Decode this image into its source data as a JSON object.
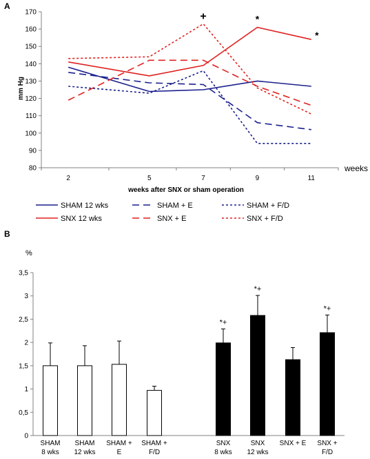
{
  "panels": {
    "a_label": "A",
    "b_label": "B"
  },
  "colors": {
    "sham": "#1a1f8c",
    "snx": "#e02020",
    "axis": "#808080",
    "bar_black": "#000000",
    "bar_white": "#ffffff"
  },
  "chart_data": [
    {
      "type": "line",
      "panel": "A",
      "ylabel": "mm Hg",
      "xlabel": "weeks after SNX or sham operation",
      "x_unit_label": "weeks",
      "x": [
        2,
        5,
        7,
        9,
        11
      ],
      "ylim": [
        80,
        170
      ],
      "yticks": [
        80,
        90,
        100,
        110,
        120,
        130,
        140,
        150,
        160,
        170
      ],
      "grid": false,
      "legend_position": "bottom",
      "series": [
        {
          "name": "SHAM 12 wks",
          "group": "sham",
          "style": "solid",
          "values": [
            138,
            124,
            125,
            130,
            127
          ]
        },
        {
          "name": "SHAM + E",
          "group": "sham",
          "style": "dashed",
          "values": [
            135,
            129,
            128,
            106,
            102
          ]
        },
        {
          "name": "SHAM + F/D",
          "group": "sham",
          "style": "dotted",
          "values": [
            127,
            123,
            136,
            94,
            94
          ]
        },
        {
          "name": "SNX 12 wks",
          "group": "snx",
          "style": "solid",
          "values": [
            141,
            133,
            139,
            161,
            154
          ]
        },
        {
          "name": "SNX + E",
          "group": "snx",
          "style": "dashed",
          "values": [
            119,
            142,
            142,
            127,
            116
          ]
        },
        {
          "name": "SNX + F/D",
          "group": "snx",
          "style": "dotted",
          "values": [
            143,
            144,
            163,
            126,
            111
          ]
        }
      ],
      "annotations": [
        {
          "text": "+",
          "x": 7,
          "y": 163
        },
        {
          "text": "*",
          "x": 9,
          "y": 161
        },
        {
          "text": "*",
          "x": 11,
          "y": 154
        }
      ]
    },
    {
      "type": "bar",
      "panel": "B",
      "ylabel": "%",
      "ylim": [
        0,
        3.5
      ],
      "yticks": [
        "0",
        "0,5",
        "1",
        "1,5",
        "2",
        "2,5",
        "3",
        "3,5"
      ],
      "grid": false,
      "categories": [
        [
          "SHAM",
          "8 wks"
        ],
        [
          "SHAM",
          "12 wks"
        ],
        [
          "SHAM +",
          "E"
        ],
        [
          "SHAM +",
          "F/D"
        ],
        [
          "SNX",
          "8 wks"
        ],
        [
          "SNX",
          "12 wks"
        ],
        [
          "SNX + E"
        ],
        [
          "SNX +",
          "F/D"
        ]
      ],
      "values": [
        1.5,
        1.5,
        1.53,
        0.97,
        1.99,
        2.58,
        1.63,
        2.21
      ],
      "errors": [
        0.49,
        0.43,
        0.5,
        0.09,
        0.3,
        0.43,
        0.26,
        0.38
      ],
      "fills": [
        "white",
        "white",
        "white",
        "white",
        "black",
        "black",
        "black",
        "black"
      ],
      "markers": [
        "",
        "",
        "",
        "",
        "*+",
        "*+",
        "",
        "*+"
      ]
    }
  ]
}
